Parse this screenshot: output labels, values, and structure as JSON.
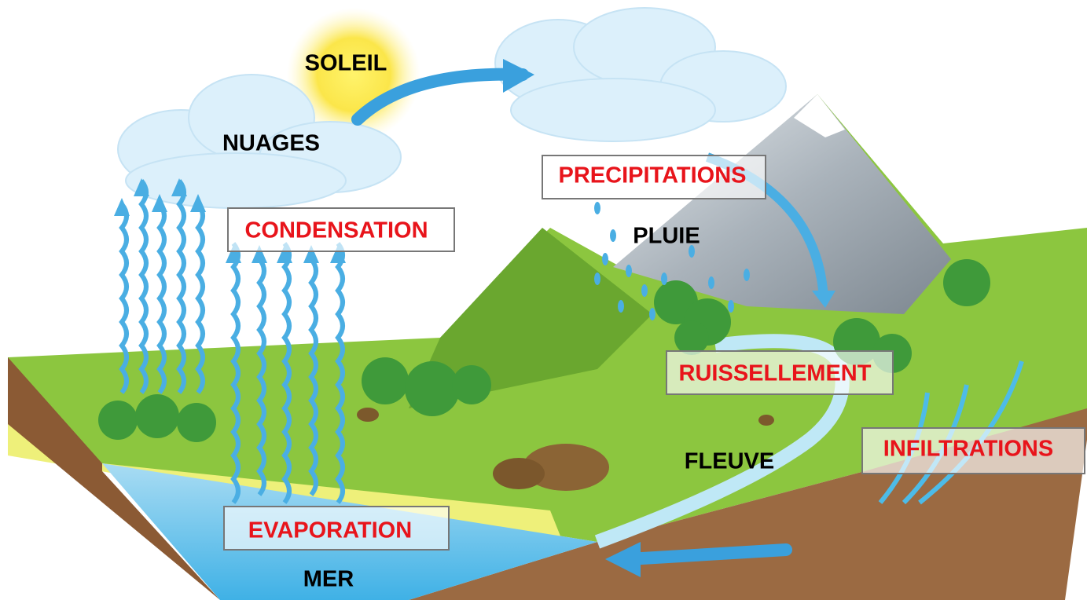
{
  "places": [
    "SOLEIL",
    "NUAGES",
    "PLUIE",
    "FLEUVE",
    "MER"
  ],
  "processes": [
    "CONDENSATION",
    "PRECIPITATIONS",
    "RUISSELLEMENT",
    "INFILTRATIONS",
    "EVAPORATION"
  ]
}
